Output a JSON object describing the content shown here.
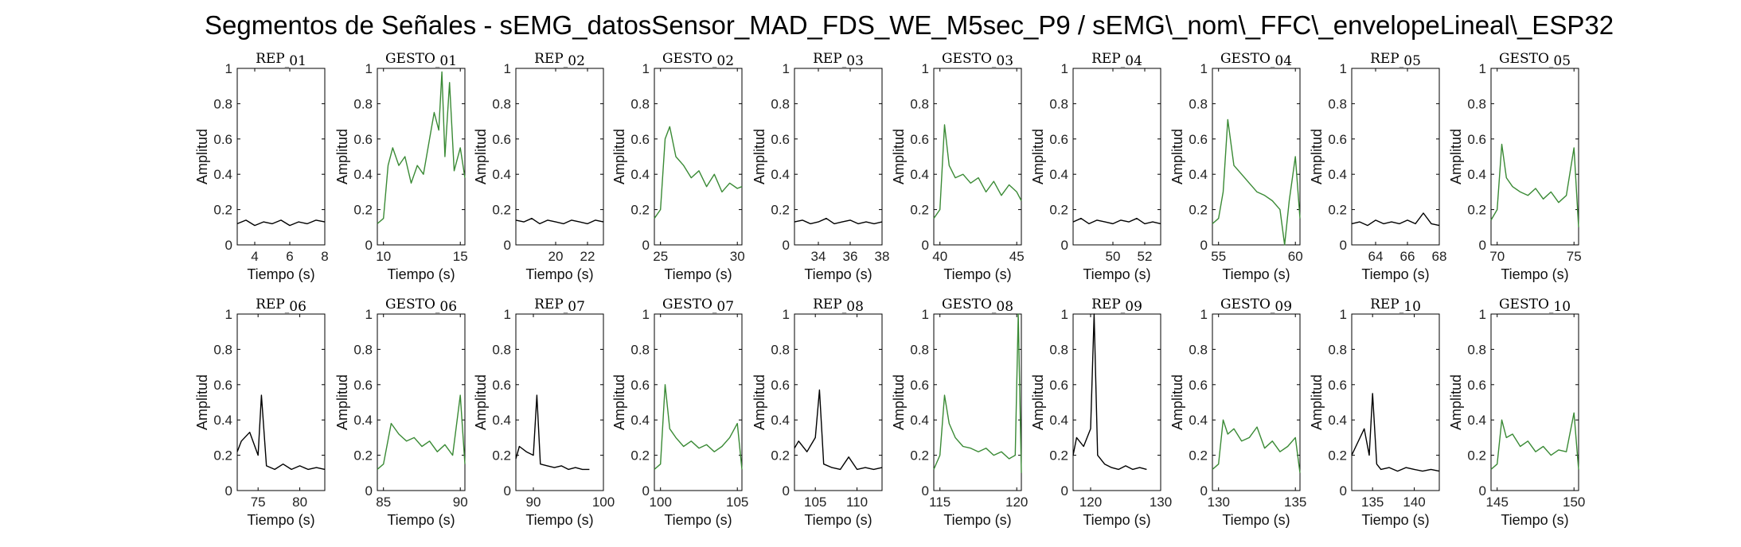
{
  "title": "Segmentos de Señales - sEMG_datosSensor_MAD_FDS_WE_M5sec_P9 / sEMG\\_nom\\_FFC\\_envelopeLineal\\_ESP32",
  "colors": {
    "rep": "#000000",
    "gesto": "#3a8a35",
    "axes": "#000000"
  },
  "chart_data": [
    {
      "type": "line",
      "title": "REP_01",
      "xlabel": "Tiempo (s)",
      "ylabel": "Amplitud",
      "xlim": [
        3,
        8
      ],
      "ylim": [
        0,
        1
      ],
      "xticks": [
        4,
        6,
        8
      ],
      "yticks": [
        0,
        0.2,
        0.4,
        0.6,
        0.8,
        1
      ],
      "color": "rep",
      "series": [
        {
          "x": [
            3,
            3.5,
            4,
            4.5,
            5,
            5.5,
            6,
            6.5,
            7,
            7.5,
            8
          ],
          "y": [
            0.12,
            0.14,
            0.11,
            0.13,
            0.12,
            0.14,
            0.11,
            0.13,
            0.12,
            0.14,
            0.13
          ]
        }
      ]
    },
    {
      "type": "line",
      "title": "GESTO_01",
      "xlabel": "Tiempo (s)",
      "ylabel": "Amplitud",
      "xlim": [
        9.6,
        15.3
      ],
      "ylim": [
        0,
        1
      ],
      "xticks": [
        10,
        15
      ],
      "yticks": [
        0,
        0.2,
        0.4,
        0.6,
        0.8,
        1
      ],
      "color": "gesto",
      "series": [
        {
          "x": [
            9.6,
            10,
            10.3,
            10.6,
            11,
            11.4,
            11.8,
            12.2,
            12.6,
            13,
            13.3,
            13.6,
            13.8,
            14,
            14.3,
            14.6,
            15,
            15.3
          ],
          "y": [
            0.12,
            0.15,
            0.45,
            0.55,
            0.45,
            0.5,
            0.35,
            0.45,
            0.4,
            0.6,
            0.75,
            0.65,
            0.98,
            0.5,
            0.92,
            0.42,
            0.55,
            0.38
          ]
        }
      ]
    },
    {
      "type": "line",
      "title": "REP_02",
      "xlabel": "Tiempo (s)",
      "ylabel": "Amplitud",
      "xlim": [
        17.5,
        23
      ],
      "ylim": [
        0,
        1
      ],
      "xticks": [
        20,
        22
      ],
      "yticks": [
        0,
        0.2,
        0.4,
        0.6,
        0.8,
        1
      ],
      "color": "rep",
      "series": [
        {
          "x": [
            17.5,
            18,
            18.5,
            19,
            19.5,
            20,
            20.5,
            21,
            21.5,
            22,
            22.5,
            23
          ],
          "y": [
            0.14,
            0.13,
            0.15,
            0.12,
            0.14,
            0.13,
            0.12,
            0.14,
            0.13,
            0.12,
            0.14,
            0.13
          ]
        }
      ]
    },
    {
      "type": "line",
      "title": "GESTO_02",
      "xlabel": "Tiempo (s)",
      "ylabel": "Amplitud",
      "xlim": [
        24.6,
        30.3
      ],
      "ylim": [
        0,
        1
      ],
      "xticks": [
        25,
        30
      ],
      "yticks": [
        0,
        0.2,
        0.4,
        0.6,
        0.8,
        1
      ],
      "color": "gesto",
      "series": [
        {
          "x": [
            24.6,
            25,
            25.3,
            25.6,
            26,
            26.5,
            27,
            27.5,
            28,
            28.5,
            29,
            29.5,
            30,
            30.3
          ],
          "y": [
            0.15,
            0.2,
            0.6,
            0.67,
            0.5,
            0.45,
            0.38,
            0.42,
            0.33,
            0.4,
            0.3,
            0.35,
            0.32,
            0.33
          ]
        }
      ]
    },
    {
      "type": "line",
      "title": "REP_03",
      "xlabel": "Tiempo (s)",
      "ylabel": "Amplitud",
      "xlim": [
        32.5,
        38
      ],
      "ylim": [
        0,
        1
      ],
      "xticks": [
        34,
        36,
        38
      ],
      "yticks": [
        0,
        0.2,
        0.4,
        0.6,
        0.8,
        1
      ],
      "color": "rep",
      "series": [
        {
          "x": [
            32.5,
            33,
            33.5,
            34,
            34.5,
            35,
            35.5,
            36,
            36.5,
            37,
            37.5,
            38
          ],
          "y": [
            0.13,
            0.14,
            0.12,
            0.13,
            0.15,
            0.12,
            0.13,
            0.14,
            0.12,
            0.13,
            0.12,
            0.13
          ]
        }
      ]
    },
    {
      "type": "line",
      "title": "GESTO_03",
      "xlabel": "Tiempo (s)",
      "ylabel": "Amplitud",
      "xlim": [
        39.6,
        45.3
      ],
      "ylim": [
        0,
        1
      ],
      "xticks": [
        40,
        45
      ],
      "yticks": [
        0,
        0.2,
        0.4,
        0.6,
        0.8,
        1
      ],
      "color": "gesto",
      "series": [
        {
          "x": [
            39.6,
            40,
            40.3,
            40.6,
            41,
            41.5,
            42,
            42.5,
            43,
            43.5,
            44,
            44.5,
            45,
            45.3
          ],
          "y": [
            0.15,
            0.2,
            0.68,
            0.45,
            0.38,
            0.4,
            0.35,
            0.38,
            0.3,
            0.36,
            0.28,
            0.34,
            0.3,
            0.25
          ]
        }
      ]
    },
    {
      "type": "line",
      "title": "REP_04",
      "xlabel": "Tiempo (s)",
      "ylabel": "Amplitud",
      "xlim": [
        47.5,
        53
      ],
      "ylim": [
        0,
        1
      ],
      "xticks": [
        50,
        52
      ],
      "yticks": [
        0,
        0.2,
        0.4,
        0.6,
        0.8,
        1
      ],
      "color": "rep",
      "series": [
        {
          "x": [
            47.5,
            48,
            48.5,
            49,
            49.5,
            50,
            50.5,
            51,
            51.5,
            52,
            52.5,
            53
          ],
          "y": [
            0.13,
            0.15,
            0.12,
            0.14,
            0.13,
            0.12,
            0.14,
            0.13,
            0.15,
            0.12,
            0.13,
            0.12
          ]
        }
      ]
    },
    {
      "type": "line",
      "title": "GESTO_04",
      "xlabel": "Tiempo (s)",
      "ylabel": "Amplitud",
      "xlim": [
        54.6,
        60.3
      ],
      "ylim": [
        0,
        1
      ],
      "xticks": [
        55,
        60
      ],
      "yticks": [
        0,
        0.2,
        0.4,
        0.6,
        0.8,
        1
      ],
      "color": "gesto",
      "series": [
        {
          "x": [
            54.6,
            55,
            55.3,
            55.6,
            56,
            56.5,
            57,
            57.5,
            58,
            58.5,
            59,
            59.3,
            59.6,
            60,
            60.3
          ],
          "y": [
            0.12,
            0.15,
            0.3,
            0.71,
            0.45,
            0.4,
            0.35,
            0.3,
            0.28,
            0.25,
            0.2,
            0.0,
            0.25,
            0.5,
            0.15
          ]
        }
      ]
    },
    {
      "type": "line",
      "title": "REP_05",
      "xlabel": "Tiempo (s)",
      "ylabel": "Amplitud",
      "xlim": [
        62.5,
        68
      ],
      "ylim": [
        0,
        1
      ],
      "xticks": [
        64,
        66,
        68
      ],
      "yticks": [
        0,
        0.2,
        0.4,
        0.6,
        0.8,
        1
      ],
      "color": "rep",
      "series": [
        {
          "x": [
            62.5,
            63,
            63.5,
            64,
            64.5,
            65,
            65.5,
            66,
            66.5,
            67,
            67.5,
            68
          ],
          "y": [
            0.12,
            0.13,
            0.11,
            0.14,
            0.12,
            0.13,
            0.12,
            0.14,
            0.12,
            0.18,
            0.12,
            0.11
          ]
        }
      ]
    },
    {
      "type": "line",
      "title": "GESTO_05",
      "xlabel": "Tiempo (s)",
      "ylabel": "Amplitud",
      "xlim": [
        69.6,
        75.3
      ],
      "ylim": [
        0,
        1
      ],
      "xticks": [
        70,
        75
      ],
      "yticks": [
        0,
        0.2,
        0.4,
        0.6,
        0.8,
        1
      ],
      "color": "gesto",
      "series": [
        {
          "x": [
            69.6,
            70,
            70.3,
            70.6,
            71,
            71.5,
            72,
            72.5,
            73,
            73.5,
            74,
            74.5,
            75,
            75.3
          ],
          "y": [
            0.14,
            0.2,
            0.57,
            0.38,
            0.33,
            0.3,
            0.28,
            0.32,
            0.26,
            0.3,
            0.24,
            0.28,
            0.55,
            0.1
          ]
        }
      ]
    },
    {
      "type": "line",
      "title": "REP_06",
      "xlabel": "Tiempo (s)",
      "ylabel": "Amplitud",
      "xlim": [
        72.5,
        83
      ],
      "ylim": [
        0,
        1
      ],
      "xticks": [
        75,
        80
      ],
      "yticks": [
        0,
        0.2,
        0.4,
        0.6,
        0.8,
        1
      ],
      "color": "rep",
      "series": [
        {
          "x": [
            72.5,
            73,
            74,
            75,
            75.4,
            76,
            77,
            78,
            79,
            80,
            81,
            82,
            83
          ],
          "y": [
            0.22,
            0.28,
            0.33,
            0.2,
            0.54,
            0.14,
            0.12,
            0.15,
            0.12,
            0.14,
            0.12,
            0.13,
            0.12
          ]
        }
      ]
    },
    {
      "type": "line",
      "title": "GESTO_06",
      "xlabel": "Tiempo (s)",
      "ylabel": "Amplitud",
      "xlim": [
        84.6,
        90.3
      ],
      "ylim": [
        0,
        1
      ],
      "xticks": [
        85,
        90
      ],
      "yticks": [
        0,
        0.2,
        0.4,
        0.6,
        0.8,
        1
      ],
      "color": "gesto",
      "series": [
        {
          "x": [
            84.6,
            85,
            85.5,
            86,
            86.5,
            87,
            87.5,
            88,
            88.5,
            89,
            89.5,
            90,
            90.3
          ],
          "y": [
            0.12,
            0.15,
            0.38,
            0.32,
            0.28,
            0.3,
            0.25,
            0.28,
            0.22,
            0.26,
            0.2,
            0.54,
            0.15
          ]
        }
      ]
    },
    {
      "type": "line",
      "title": "REP_07",
      "xlabel": "Tiempo (s)",
      "ylabel": "Amplitud",
      "xlim": [
        87.5,
        100
      ],
      "ylim": [
        0,
        1
      ],
      "xticks": [
        90,
        100
      ],
      "yticks": [
        0,
        0.2,
        0.4,
        0.6,
        0.8,
        1
      ],
      "color": "rep",
      "series": [
        {
          "x": [
            87.5,
            88,
            89,
            90,
            90.5,
            91,
            92,
            93,
            94,
            95,
            96,
            97,
            98
          ],
          "y": [
            0.18,
            0.25,
            0.22,
            0.2,
            0.54,
            0.15,
            0.14,
            0.13,
            0.14,
            0.12,
            0.13,
            0.12,
            0.12
          ]
        }
      ]
    },
    {
      "type": "line",
      "title": "GESTO_07",
      "xlabel": "Tiempo (s)",
      "ylabel": "Amplitud",
      "xlim": [
        99.6,
        105.3
      ],
      "ylim": [
        0,
        1
      ],
      "xticks": [
        100,
        105
      ],
      "yticks": [
        0,
        0.2,
        0.4,
        0.6,
        0.8,
        1
      ],
      "color": "gesto",
      "series": [
        {
          "x": [
            99.6,
            100,
            100.3,
            100.6,
            101,
            101.5,
            102,
            102.5,
            103,
            103.5,
            104,
            104.5,
            105,
            105.3
          ],
          "y": [
            0.12,
            0.15,
            0.6,
            0.35,
            0.3,
            0.25,
            0.28,
            0.24,
            0.26,
            0.22,
            0.25,
            0.3,
            0.38,
            0.12
          ]
        }
      ]
    },
    {
      "type": "line",
      "title": "REP_08",
      "xlabel": "Tiempo (s)",
      "ylabel": "Amplitud",
      "xlim": [
        102.5,
        113
      ],
      "ylim": [
        0,
        1
      ],
      "xticks": [
        105,
        110
      ],
      "yticks": [
        0,
        0.2,
        0.4,
        0.6,
        0.8,
        1
      ],
      "color": "rep",
      "series": [
        {
          "x": [
            102.5,
            103,
            104,
            105,
            105.5,
            106,
            107,
            108,
            109,
            110,
            111,
            112,
            113
          ],
          "y": [
            0.24,
            0.28,
            0.22,
            0.3,
            0.57,
            0.15,
            0.13,
            0.12,
            0.19,
            0.12,
            0.13,
            0.12,
            0.13
          ]
        }
      ]
    },
    {
      "type": "line",
      "title": "GESTO_08",
      "xlabel": "Tiempo (s)",
      "ylabel": "Amplitud",
      "xlim": [
        114.6,
        120.3
      ],
      "ylim": [
        0,
        1
      ],
      "xticks": [
        115,
        120
      ],
      "yticks": [
        0,
        0.2,
        0.4,
        0.6,
        0.8,
        1
      ],
      "color": "gesto",
      "series": [
        {
          "x": [
            114.6,
            115,
            115.3,
            115.6,
            116,
            116.5,
            117,
            117.5,
            118,
            118.5,
            119,
            119.5,
            119.9,
            120.1,
            120.3
          ],
          "y": [
            0.12,
            0.2,
            0.54,
            0.38,
            0.3,
            0.25,
            0.24,
            0.22,
            0.24,
            0.2,
            0.22,
            0.18,
            0.2,
            1.0,
            0.1
          ]
        }
      ]
    },
    {
      "type": "line",
      "title": "REP_09",
      "xlabel": "Tiempo (s)",
      "ylabel": "Amplitud",
      "xlim": [
        117.5,
        130
      ],
      "ylim": [
        0,
        1
      ],
      "xticks": [
        120,
        130
      ],
      "yticks": [
        0,
        0.2,
        0.4,
        0.6,
        0.8,
        1
      ],
      "color": "rep",
      "series": [
        {
          "x": [
            117.5,
            118,
            119,
            120,
            120.5,
            121,
            122,
            123,
            124,
            125,
            126,
            127,
            128
          ],
          "y": [
            0.2,
            0.3,
            0.25,
            0.35,
            1.0,
            0.2,
            0.15,
            0.13,
            0.12,
            0.14,
            0.12,
            0.13,
            0.12
          ]
        }
      ]
    },
    {
      "type": "line",
      "title": "GESTO_09",
      "xlabel": "Tiempo (s)",
      "ylabel": "Amplitud",
      "xlim": [
        129.6,
        135.3
      ],
      "ylim": [
        0,
        1
      ],
      "xticks": [
        130,
        135
      ],
      "yticks": [
        0,
        0.2,
        0.4,
        0.6,
        0.8,
        1
      ],
      "color": "gesto",
      "series": [
        {
          "x": [
            129.6,
            130,
            130.3,
            130.6,
            131,
            131.5,
            132,
            132.5,
            133,
            133.5,
            134,
            134.5,
            135,
            135.3
          ],
          "y": [
            0.12,
            0.15,
            0.4,
            0.32,
            0.35,
            0.28,
            0.3,
            0.36,
            0.24,
            0.28,
            0.22,
            0.25,
            0.3,
            0.1
          ]
        }
      ]
    },
    {
      "type": "line",
      "title": "REP_10",
      "xlabel": "Tiempo (s)",
      "ylabel": "Amplitud",
      "xlim": [
        132.5,
        143
      ],
      "ylim": [
        0,
        1
      ],
      "xticks": [
        135,
        140
      ],
      "yticks": [
        0,
        0.2,
        0.4,
        0.6,
        0.8,
        1
      ],
      "color": "rep",
      "series": [
        {
          "x": [
            132.5,
            133,
            134,
            134.6,
            135,
            135.5,
            136,
            137,
            138,
            139,
            140,
            141,
            142,
            143
          ],
          "y": [
            0.2,
            0.25,
            0.35,
            0.2,
            0.55,
            0.15,
            0.12,
            0.13,
            0.11,
            0.13,
            0.12,
            0.11,
            0.12,
            0.11
          ]
        }
      ]
    },
    {
      "type": "line",
      "title": "GESTO_10",
      "xlabel": "Tiempo (s)",
      "ylabel": "Amplitud",
      "xlim": [
        144.6,
        150.3
      ],
      "ylim": [
        0,
        1
      ],
      "xticks": [
        145,
        150
      ],
      "yticks": [
        0,
        0.2,
        0.4,
        0.6,
        0.8,
        1
      ],
      "color": "gesto",
      "series": [
        {
          "x": [
            144.6,
            145,
            145.3,
            145.6,
            146,
            146.5,
            147,
            147.5,
            148,
            148.5,
            149,
            149.5,
            150,
            150.3
          ],
          "y": [
            0.12,
            0.15,
            0.4,
            0.3,
            0.32,
            0.25,
            0.28,
            0.22,
            0.25,
            0.2,
            0.23,
            0.22,
            0.44,
            0.12
          ]
        }
      ]
    }
  ]
}
